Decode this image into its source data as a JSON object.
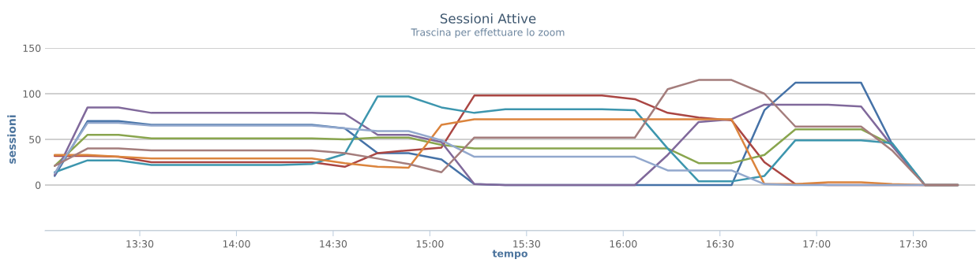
{
  "chart_data": {
    "type": "line",
    "title": "Sessioni Attive",
    "subtitle": "Trascina per effettuare lo zoom",
    "xlabel": "tempo",
    "ylabel": "sessioni",
    "x": [
      13.06,
      13.23,
      13.39,
      13.56,
      13.73,
      13.89,
      14.06,
      14.23,
      14.39,
      14.56,
      14.73,
      14.89,
      15.06,
      15.23,
      15.39,
      15.56,
      15.73,
      15.89,
      16.06,
      16.23,
      16.39,
      16.56,
      16.73,
      16.89,
      17.06,
      17.23,
      17.39,
      17.56,
      17.73
    ],
    "series": [
      {
        "color": "#4572a7",
        "values": [
          10,
          70,
          70,
          66,
          66,
          66,
          66,
          66,
          66,
          62,
          35,
          35,
          28,
          1,
          0,
          0,
          0,
          0,
          0,
          0,
          0,
          0,
          82,
          112,
          112,
          112,
          45,
          0,
          0
        ]
      },
      {
        "color": "#aa4643",
        "values": [
          32,
          32,
          31,
          25,
          25,
          25,
          25,
          25,
          25,
          20,
          35,
          38,
          41,
          98,
          98,
          98,
          98,
          98,
          94,
          79,
          74,
          71,
          25,
          1,
          0,
          0,
          0,
          0,
          0
        ]
      },
      {
        "color": "#89a54e",
        "values": [
          21,
          55,
          55,
          51,
          51,
          51,
          51,
          51,
          51,
          50,
          52,
          52,
          44,
          40,
          40,
          40,
          40,
          40,
          40,
          40,
          24,
          24,
          33,
          61,
          61,
          61,
          44,
          0,
          0
        ]
      },
      {
        "color": "#80699b",
        "values": [
          11,
          85,
          85,
          79,
          79,
          79,
          79,
          79,
          79,
          78,
          55,
          55,
          47,
          1,
          0,
          0,
          0,
          0,
          0,
          33,
          69,
          72,
          88,
          88,
          88,
          86,
          43,
          0,
          0
        ]
      },
      {
        "color": "#3d96ae",
        "values": [
          14,
          27,
          27,
          22,
          22,
          22,
          22,
          22,
          23,
          34,
          97,
          97,
          85,
          79,
          83,
          83,
          83,
          83,
          82,
          40,
          4,
          4,
          10,
          49,
          49,
          49,
          46,
          0,
          0
        ]
      },
      {
        "color": "#db843d",
        "values": [
          33,
          33,
          31,
          29,
          29,
          29,
          29,
          29,
          29,
          24,
          20,
          19,
          66,
          72,
          72,
          72,
          72,
          72,
          72,
          72,
          72,
          72,
          1,
          1,
          3,
          3,
          1,
          0,
          0
        ]
      },
      {
        "color": "#92a8cd",
        "values": [
          13,
          68,
          68,
          65,
          65,
          65,
          65,
          65,
          65,
          62,
          59,
          59,
          49,
          31,
          31,
          31,
          31,
          31,
          31,
          16,
          16,
          16,
          1,
          0,
          0,
          0,
          0,
          0,
          0
        ]
      },
      {
        "color": "#a47d7c",
        "values": [
          21,
          40,
          40,
          38,
          38,
          38,
          38,
          38,
          38,
          35,
          29,
          23,
          14,
          52,
          52,
          52,
          52,
          52,
          52,
          105,
          115,
          115,
          100,
          64,
          64,
          64,
          38,
          0,
          0
        ]
      }
    ],
    "xlim": [
      13.01,
      17.82
    ],
    "xticks": [
      {
        "value": 13.5,
        "label": "13:30"
      },
      {
        "value": 14,
        "label": "14:00"
      },
      {
        "value": 14.5,
        "label": "14:30"
      },
      {
        "value": 15,
        "label": "15:00"
      },
      {
        "value": 15.5,
        "label": "15:30"
      },
      {
        "value": 16,
        "label": "16:00"
      },
      {
        "value": 16.5,
        "label": "16:30"
      },
      {
        "value": 17,
        "label": "17:00"
      },
      {
        "value": 17.5,
        "label": "17:30"
      }
    ],
    "ylim": [
      -50,
      150
    ],
    "yticks": [
      {
        "value": -50,
        "label": null
      },
      0,
      50,
      100,
      150
    ],
    "grid": "y",
    "marker": "none",
    "line_style": "solid"
  }
}
